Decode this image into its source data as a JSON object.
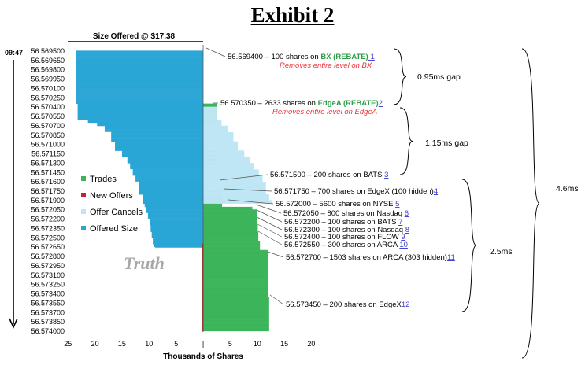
{
  "header": {
    "title": "Exhibit 2"
  },
  "chart_data": {
    "type": "bar",
    "title": "Size Offered @ $17.38",
    "xlabel": "Thousands of Shares",
    "watermark": "Truth",
    "start_time": "09:47",
    "x_ticks": [
      "25",
      "20",
      "15",
      "10",
      "5",
      "|",
      "5",
      "10",
      "15",
      "20"
    ],
    "y_ticks": [
      "56.569500",
      "56.569650",
      "56.569800",
      "56.569950",
      "56.570100",
      "56.570250",
      "56.570400",
      "56.570550",
      "56.570700",
      "56.570850",
      "56.571000",
      "56.571150",
      "56.571300",
      "56.571450",
      "56.571600",
      "56.571750",
      "56.571900",
      "56.572050",
      "56.572200",
      "56.572350",
      "56.572500",
      "56.572650",
      "56.572800",
      "56.572950",
      "56.573100",
      "56.573250",
      "56.573400",
      "56.573550",
      "56.573700",
      "56.573850",
      "56.574000"
    ],
    "legend": [
      {
        "label": "Trades",
        "color": "#3cb45a"
      },
      {
        "label": "New Offers",
        "color": "#c0262b"
      },
      {
        "label": "Offer Cancels",
        "color": "#bfe6f4"
      },
      {
        "label": "Offered Size",
        "color": "#2aa6d6"
      }
    ],
    "series": [
      {
        "name": "Offered Size",
        "color": "#2aa6d6",
        "side": "left",
        "points": [
          [
            56.5695,
            23.5
          ],
          [
            56.5697,
            23.5
          ],
          [
            56.57025,
            23.5
          ],
          [
            56.57035,
            23.2
          ],
          [
            56.5704,
            23.2
          ],
          [
            56.5706,
            21.3
          ],
          [
            56.57065,
            19.6
          ],
          [
            56.5707,
            18.2
          ],
          [
            56.5708,
            17.0
          ],
          [
            56.57095,
            16.3
          ],
          [
            56.5711,
            15.0
          ],
          [
            56.5712,
            14.0
          ],
          [
            56.5713,
            13.5
          ],
          [
            56.5714,
            13.0
          ],
          [
            56.5715,
            12.5
          ],
          [
            56.5716,
            11.8
          ],
          [
            56.5718,
            11.2
          ],
          [
            56.57195,
            10.8
          ],
          [
            56.572,
            10.5
          ],
          [
            56.5721,
            10.2
          ],
          [
            56.5722,
            9.9
          ],
          [
            56.5723,
            9.7
          ],
          [
            56.5724,
            9.5
          ],
          [
            56.5725,
            9.3
          ],
          [
            56.5726,
            9.1
          ],
          [
            56.57265,
            8.9
          ]
        ]
      },
      {
        "name": "Trades",
        "color": "#3cb45a",
        "side": "right",
        "points": [
          [
            56.57035,
            2.6
          ],
          [
            56.5715,
            2.8
          ],
          [
            56.57175,
            3.5
          ],
          [
            56.572,
            9.1
          ],
          [
            56.57205,
            9.9
          ],
          [
            56.5722,
            10.0
          ],
          [
            56.5723,
            10.1
          ],
          [
            56.5724,
            10.2
          ],
          [
            56.57255,
            10.5
          ],
          [
            56.5727,
            12.0
          ],
          [
            56.57345,
            12.2
          ],
          [
            56.574,
            12.2
          ]
        ]
      },
      {
        "name": "Offer Cancels",
        "color": "#bfe6f4",
        "side": "right",
        "points": [
          [
            56.5704,
            2.6
          ],
          [
            56.5706,
            3.4
          ],
          [
            56.5707,
            4.6
          ],
          [
            56.5708,
            5.6
          ],
          [
            56.57095,
            6.4
          ],
          [
            56.5711,
            7.6
          ],
          [
            56.5712,
            8.6
          ],
          [
            56.5713,
            9.4
          ],
          [
            56.5714,
            10.3
          ],
          [
            56.5715,
            11.0
          ],
          [
            56.5716,
            11.6
          ],
          [
            56.5718,
            12.2
          ],
          [
            56.5719,
            12.7
          ],
          [
            56.57195,
            13.0
          ]
        ]
      },
      {
        "name": "New Offers",
        "color": "#c0262b",
        "side": "center",
        "points": [
          [
            56.5726,
            0.15
          ],
          [
            56.574,
            0.15
          ]
        ]
      }
    ],
    "annotations": [
      {
        "t": 56.5694,
        "parts": [
          {
            "text": "56.569400 – 100 shares on ",
            "style": "plain"
          },
          {
            "text": "BX (REBATE)",
            "style": "green"
          },
          {
            "text": " 1",
            "style": "num"
          }
        ],
        "sub": "Removes entire level on BX"
      },
      {
        "t": 56.57035,
        "parts": [
          {
            "text": "56.570350 – 2633 shares on ",
            "style": "plain"
          },
          {
            "text": "EdgeA (REBATE)",
            "style": "green"
          },
          {
            "text": "2",
            "style": "num"
          }
        ],
        "sub": "Removes entire level on EdgeA"
      },
      {
        "t": 56.5715,
        "parts": [
          {
            "text": "56.571500 – 200 shares on BATS ",
            "style": "plain"
          },
          {
            "text": "3",
            "style": "num"
          }
        ]
      },
      {
        "t": 56.57175,
        "parts": [
          {
            "text": "56.571750 – 700 shares on EdgeX (100 hidden)",
            "style": "plain"
          },
          {
            "text": "4",
            "style": "num"
          }
        ]
      },
      {
        "t": 56.572,
        "parts": [
          {
            "text": "56.572000 – 5600 shares on NYSE ",
            "style": "plain"
          },
          {
            "text": "5",
            "style": "num"
          }
        ]
      },
      {
        "t": 56.57205,
        "parts": [
          {
            "text": "56.572050 – 800 shares on Nasdaq ",
            "style": "plain"
          },
          {
            "text": "6",
            "style": "num"
          }
        ]
      },
      {
        "t": 56.5722,
        "parts": [
          {
            "text": "56.572200 – 100 shares on BATS ",
            "style": "plain"
          },
          {
            "text": "7",
            "style": "num"
          }
        ]
      },
      {
        "t": 56.5723,
        "parts": [
          {
            "text": "56.572300 – 100 shares on Nasdaq ",
            "style": "plain"
          },
          {
            "text": "8",
            "style": "num"
          }
        ]
      },
      {
        "t": 56.5724,
        "parts": [
          {
            "text": "56.572400 – 100 shares on FLOW ",
            "style": "plain"
          },
          {
            "text": "9",
            "style": "num"
          }
        ]
      },
      {
        "t": 56.57255,
        "parts": [
          {
            "text": "56.572550 – 300 shares on ARCA ",
            "style": "plain"
          },
          {
            "text": "10",
            "style": "num"
          }
        ]
      },
      {
        "t": 56.5727,
        "parts": [
          {
            "text": "56.572700 – 1503 shares on ARCA (303 hidden)",
            "style": "plain"
          },
          {
            "text": "11",
            "style": "num"
          }
        ]
      },
      {
        "t": 56.57345,
        "parts": [
          {
            "text": "56.573450 – 200 shares on EdgeX",
            "style": "plain"
          },
          {
            "text": "12",
            "style": "num"
          }
        ]
      }
    ],
    "brackets": [
      {
        "label": "0.95ms gap",
        "from": 56.5694,
        "to": 56.57035
      },
      {
        "label": "1.15ms gap",
        "from": 56.57035,
        "to": 56.5715
      },
      {
        "label": "2.5ms",
        "from": 56.5715,
        "to": 56.574
      },
      {
        "label": "4.6ms",
        "from": 56.5694,
        "to": 56.574
      }
    ]
  }
}
